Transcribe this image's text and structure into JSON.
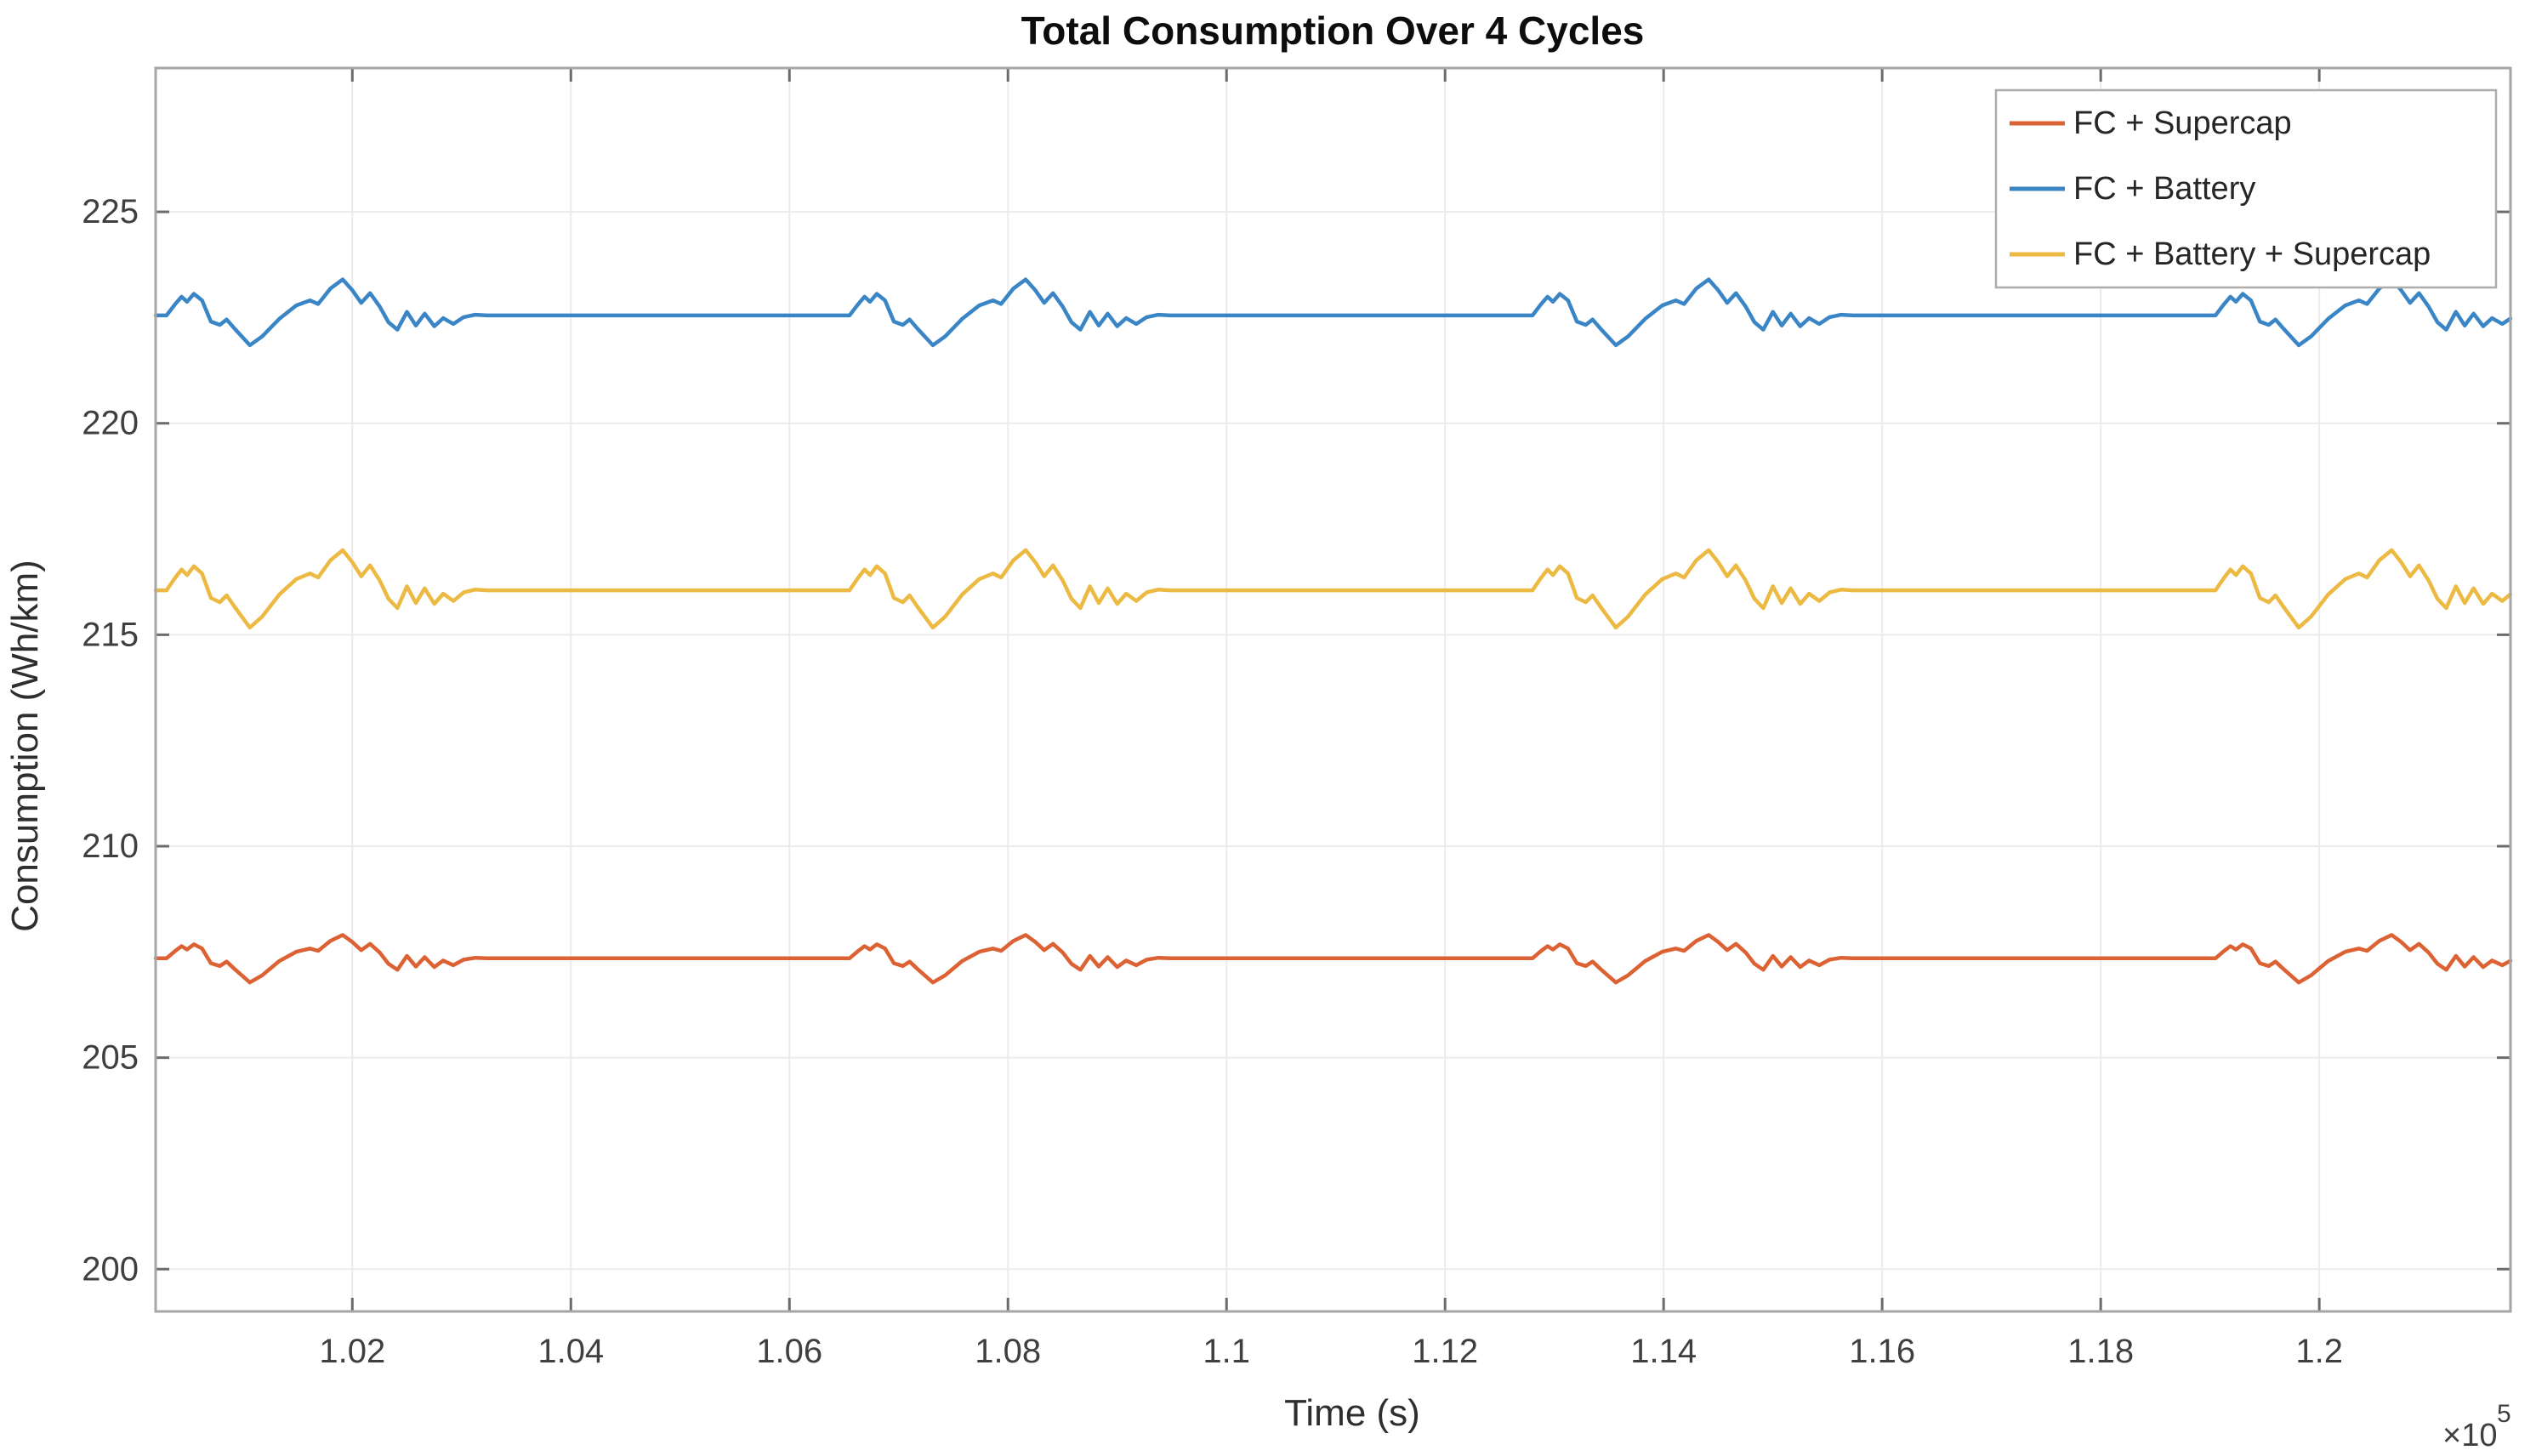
{
  "title": "Total Consumption Over 4 Cycles",
  "axes": {
    "xlabel": "Time (s)",
    "ylabel": "Consumption (Wh/km)",
    "x_multiplier_base": "×10",
    "x_multiplier_exp": "5",
    "x_units_note": "x values in units of 1e5 seconds",
    "xlim": [
      1.002,
      1.2175
    ],
    "ylim": [
      199.0,
      228.4
    ],
    "x_ticks": [
      1.02,
      1.04,
      1.06,
      1.08,
      1.1,
      1.12,
      1.14,
      1.16,
      1.18,
      1.2
    ],
    "x_tick_labels": [
      "1.02",
      "1.04",
      "1.06",
      "1.08",
      "1.1",
      "1.12",
      "1.14",
      "1.16",
      "1.18",
      "1.2"
    ],
    "y_ticks": [
      200,
      205,
      210,
      215,
      220,
      225
    ],
    "y_tick_labels": [
      "200",
      "205",
      "210",
      "215",
      "220",
      "225"
    ],
    "grid": true,
    "box": true,
    "tick_direction": "in"
  },
  "legend": {
    "position": "top-right",
    "entries": [
      {
        "label": "FC + Supercap",
        "color": "#dc6234"
      },
      {
        "label": "FC + Battery",
        "color": "#3a85c5"
      },
      {
        "label": "FC + Battery + Supercap",
        "color": "#ecba42"
      }
    ]
  },
  "colors": {
    "grid": "#ebebeb",
    "axis_box": "#a6a6a6",
    "tick_mark": "#6b6b6b",
    "tick_label": "#3f3f3f",
    "legend_border": "#adadad",
    "background": "#ffffff"
  },
  "chart_data": {
    "type": "line",
    "title": "Total Consumption Over 4 Cycles",
    "xlabel": "Time (s)",
    "ylabel": "Consumption (Wh/km)",
    "xlim": [
      1.002,
      1.2175
    ],
    "ylim": [
      199.0,
      228.4
    ],
    "x_scale": 100000,
    "grid": true,
    "legend_position": "top-right",
    "description": "Three periodic consumption traces over 4 repeated drive cycles; each cycle has a bumpy half followed by a flat half at the series baseline.",
    "series": [
      {
        "name": "FC + Supercap",
        "color": "#dc6234",
        "baseline": 207.35,
        "amp_up": 0.55,
        "amp_dn": 0.65,
        "value_range": [
          206.7,
          207.9
        ]
      },
      {
        "name": "FC + Battery",
        "color": "#3a85c5",
        "baseline": 222.55,
        "amp_up": 0.85,
        "amp_dn": 0.8,
        "value_range": [
          221.75,
          223.4
        ]
      },
      {
        "name": "FC + Battery + Supercap",
        "color": "#ecba42",
        "baseline": 216.05,
        "amp_up": 0.95,
        "amp_dn": 1.0,
        "value_range": [
          215.05,
          217.0
        ]
      }
    ],
    "cycle": {
      "starts": [
        1.003,
        1.0655,
        1.128,
        1.1905
      ],
      "period": 0.0625,
      "template_note": "pairs of [fraction of cycle, normalized deviation]; +1 scales by amp_up, -1 by amp_dn",
      "template": [
        [
          0.0,
          0.0
        ],
        [
          0.012,
          0.3
        ],
        [
          0.022,
          0.52
        ],
        [
          0.03,
          0.38
        ],
        [
          0.04,
          0.6
        ],
        [
          0.052,
          0.42
        ],
        [
          0.065,
          -0.18
        ],
        [
          0.078,
          -0.28
        ],
        [
          0.088,
          -0.12
        ],
        [
          0.1,
          -0.4
        ],
        [
          0.122,
          -0.88
        ],
        [
          0.14,
          -0.62
        ],
        [
          0.165,
          -0.1
        ],
        [
          0.19,
          0.28
        ],
        [
          0.21,
          0.42
        ],
        [
          0.222,
          0.32
        ],
        [
          0.24,
          0.75
        ],
        [
          0.258,
          1.0
        ],
        [
          0.272,
          0.7
        ],
        [
          0.285,
          0.35
        ],
        [
          0.298,
          0.62
        ],
        [
          0.312,
          0.25
        ],
        [
          0.325,
          -0.2
        ],
        [
          0.338,
          -0.42
        ],
        [
          0.352,
          0.1
        ],
        [
          0.365,
          -0.3
        ],
        [
          0.378,
          0.05
        ],
        [
          0.392,
          -0.32
        ],
        [
          0.405,
          -0.08
        ],
        [
          0.42,
          -0.25
        ],
        [
          0.435,
          -0.05
        ],
        [
          0.452,
          0.02
        ],
        [
          0.47,
          0.0
        ],
        [
          0.5,
          0.0
        ],
        [
          1.0,
          0.0
        ]
      ]
    }
  }
}
